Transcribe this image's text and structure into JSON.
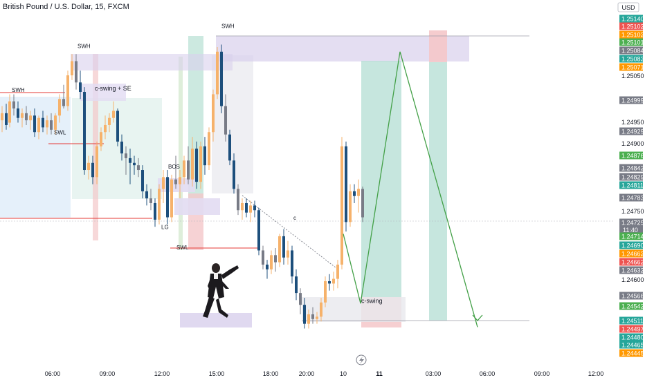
{
  "header": {
    "title": "British Pound / U.S. Dollar, 15, FXCM",
    "currency": "USD"
  },
  "chart_data": {
    "type": "candlestick",
    "title": "British Pound / U.S. Dollar, 15, FXCM",
    "ylim": [
      1.2443,
      1.2516
    ],
    "y_ticks": [
      1.2505,
      1.2495,
      1.249,
      1.2475,
      1.246
    ],
    "x_ticks": [
      "06:00",
      "09:00",
      "12:00",
      "15:00",
      "18:00",
      "20:00",
      "10",
      "11",
      "03:00",
      "06:00",
      "09:00",
      "12:00"
    ],
    "x_tick_bold": [
      false,
      false,
      false,
      false,
      false,
      false,
      false,
      true,
      false,
      false,
      false,
      false
    ],
    "price_labels": [
      {
        "value": "1.25140",
        "color": "#26a69a"
      },
      {
        "value": "1.25102",
        "color": "#ef5350"
      },
      {
        "value": "1.25102",
        "color": "#ff9800"
      },
      {
        "value": "1.25101",
        "color": "#4caf50"
      },
      {
        "value": "1.25084",
        "color": "#787b86"
      },
      {
        "value": "1.25083",
        "color": "#26a69a"
      },
      {
        "value": "1.25071",
        "color": "#ff9800"
      },
      {
        "value": "1.24999",
        "color": "#787b86"
      },
      {
        "value": "1.24929",
        "color": "#787b86"
      },
      {
        "value": "1.24876",
        "color": "#4caf50"
      },
      {
        "value": "1.24842",
        "color": "#787b86"
      },
      {
        "value": "1.24829",
        "color": "#787b86"
      },
      {
        "value": "1.24811",
        "color": "#26a69a"
      },
      {
        "value": "1.24783",
        "color": "#787b86"
      },
      {
        "value": "1.24729",
        "color": "#787b86",
        "sub": "11:40"
      },
      {
        "value": "1.24714",
        "color": "#4caf50"
      },
      {
        "value": "1.24690",
        "color": "#26a69a"
      },
      {
        "value": "1.24662",
        "color": "#ff9800"
      },
      {
        "value": "1.24662",
        "color": "#ef5350"
      },
      {
        "value": "1.24632",
        "color": "#787b86"
      },
      {
        "value": "1.24566",
        "color": "#787b86"
      },
      {
        "value": "1.24542",
        "color": "#4caf50"
      },
      {
        "value": "1.24511",
        "color": "#26a69a"
      },
      {
        "value": "1.24497",
        "color": "#ef5350"
      },
      {
        "value": "1.24480",
        "color": "#26a69a"
      },
      {
        "value": "1.24465",
        "color": "#26a69a"
      },
      {
        "value": "1.24445",
        "color": "#ff9800"
      }
    ],
    "annotations": [
      {
        "text": "SWH",
        "x": 17,
        "price": 1.24995
      },
      {
        "text": "SWL",
        "x": 78,
        "price": 1.24905
      },
      {
        "text": "SWH",
        "x": 112,
        "price": 1.25088
      },
      {
        "text": "c-swing + SE",
        "x": 137,
        "price": 1.24998
      },
      {
        "text": "BOS",
        "x": 243,
        "price": 1.24833
      },
      {
        "text": "LG",
        "x": 233,
        "price": 1.24705
      },
      {
        "text": "SWL",
        "x": 255,
        "price": 1.24662
      },
      {
        "text": "SWH",
        "x": 320,
        "price": 1.2513
      },
      {
        "text": "c-swing",
        "x": 522,
        "price": 1.24549
      },
      {
        "text": "c",
        "x": 424,
        "price": 1.24725
      }
    ],
    "candles": [
      {
        "x": 1,
        "o": 1.24935,
        "h": 1.24965,
        "l": 1.2491,
        "c": 1.2495
      },
      {
        "x": 7,
        "o": 1.2495,
        "h": 1.2497,
        "l": 1.24915,
        "c": 1.24925
      },
      {
        "x": 12,
        "o": 1.2493,
        "h": 1.2499,
        "l": 1.2492,
        "c": 1.24975
      },
      {
        "x": 18,
        "o": 1.24975,
        "h": 1.2499,
        "l": 1.24945,
        "c": 1.2496
      },
      {
        "x": 24,
        "o": 1.2496,
        "h": 1.24975,
        "l": 1.2493,
        "c": 1.2494
      },
      {
        "x": 30,
        "o": 1.2494,
        "h": 1.2496,
        "l": 1.2492,
        "c": 1.2495
      },
      {
        "x": 36,
        "o": 1.2495,
        "h": 1.24965,
        "l": 1.24925,
        "c": 1.24935
      },
      {
        "x": 42,
        "o": 1.24935,
        "h": 1.24955,
        "l": 1.24915,
        "c": 1.24945
      },
      {
        "x": 48,
        "o": 1.24945,
        "h": 1.2496,
        "l": 1.249,
        "c": 1.2491
      },
      {
        "x": 54,
        "o": 1.2491,
        "h": 1.24945,
        "l": 1.24895,
        "c": 1.2494
      },
      {
        "x": 60,
        "o": 1.2494,
        "h": 1.24955,
        "l": 1.2491,
        "c": 1.2492
      },
      {
        "x": 66,
        "o": 1.2492,
        "h": 1.24945,
        "l": 1.24905,
        "c": 1.24935
      },
      {
        "x": 72,
        "o": 1.24935,
        "h": 1.2495,
        "l": 1.24905,
        "c": 1.24915
      },
      {
        "x": 78,
        "o": 1.24915,
        "h": 1.2495,
        "l": 1.24905,
        "c": 1.24945
      },
      {
        "x": 84,
        "o": 1.24945,
        "h": 1.2499,
        "l": 1.2493,
        "c": 1.2498
      },
      {
        "x": 90,
        "o": 1.2498,
        "h": 1.2501,
        "l": 1.2496,
        "c": 1.24965
      },
      {
        "x": 96,
        "o": 1.24965,
        "h": 1.2504,
        "l": 1.24955,
        "c": 1.2503
      },
      {
        "x": 102,
        "o": 1.2503,
        "h": 1.25075,
        "l": 1.2502,
        "c": 1.2506
      },
      {
        "x": 108,
        "o": 1.2506,
        "h": 1.25075,
        "l": 1.25,
        "c": 1.25015
      },
      {
        "x": 114,
        "o": 1.25015,
        "h": 1.2504,
        "l": 1.2498,
        "c": 1.24995
      },
      {
        "x": 120,
        "o": 1.24995,
        "h": 1.25005,
        "l": 1.2482,
        "c": 1.2483
      },
      {
        "x": 126,
        "o": 1.2483,
        "h": 1.2486,
        "l": 1.2481,
        "c": 1.24845
      },
      {
        "x": 132,
        "o": 1.24845,
        "h": 1.2486,
        "l": 1.248,
        "c": 1.24815
      },
      {
        "x": 138,
        "o": 1.24815,
        "h": 1.2489,
        "l": 1.248,
        "c": 1.2488
      },
      {
        "x": 144,
        "o": 1.2488,
        "h": 1.2492,
        "l": 1.2487,
        "c": 1.2491
      },
      {
        "x": 150,
        "o": 1.2491,
        "h": 1.24945,
        "l": 1.24895,
        "c": 1.24925
      },
      {
        "x": 156,
        "o": 1.24925,
        "h": 1.2495,
        "l": 1.2491,
        "c": 1.2494
      },
      {
        "x": 162,
        "o": 1.2494,
        "h": 1.24975,
        "l": 1.2493,
        "c": 1.24955
      },
      {
        "x": 168,
        "o": 1.24955,
        "h": 1.2496,
        "l": 1.2488,
        "c": 1.2489
      },
      {
        "x": 174,
        "o": 1.2489,
        "h": 1.24905,
        "l": 1.2485,
        "c": 1.24865
      },
      {
        "x": 180,
        "o": 1.24865,
        "h": 1.2488,
        "l": 1.2482,
        "c": 1.24855
      },
      {
        "x": 186,
        "o": 1.24855,
        "h": 1.24875,
        "l": 1.248,
        "c": 1.24845
      },
      {
        "x": 192,
        "o": 1.24845,
        "h": 1.2486,
        "l": 1.2482,
        "c": 1.2484
      },
      {
        "x": 198,
        "o": 1.2484,
        "h": 1.24855,
        "l": 1.24815,
        "c": 1.2483
      },
      {
        "x": 204,
        "o": 1.2483,
        "h": 1.2484,
        "l": 1.2477,
        "c": 1.24785
      },
      {
        "x": 210,
        "o": 1.24785,
        "h": 1.248,
        "l": 1.24755,
        "c": 1.2477
      },
      {
        "x": 216,
        "o": 1.2477,
        "h": 1.2479,
        "l": 1.24745,
        "c": 1.2476
      },
      {
        "x": 222,
        "o": 1.2476,
        "h": 1.2477,
        "l": 1.2471,
        "c": 1.24725
      },
      {
        "x": 228,
        "o": 1.24725,
        "h": 1.248,
        "l": 1.24715,
        "c": 1.2479
      },
      {
        "x": 234,
        "o": 1.2479,
        "h": 1.2483,
        "l": 1.2476,
        "c": 1.24815
      },
      {
        "x": 240,
        "o": 1.24815,
        "h": 1.2483,
        "l": 1.24715,
        "c": 1.2473
      },
      {
        "x": 246,
        "o": 1.2473,
        "h": 1.2482,
        "l": 1.2472,
        "c": 1.2481
      },
      {
        "x": 252,
        "o": 1.2481,
        "h": 1.2486,
        "l": 1.2479,
        "c": 1.248
      },
      {
        "x": 258,
        "o": 1.248,
        "h": 1.2483,
        "l": 1.2477,
        "c": 1.24815
      },
      {
        "x": 264,
        "o": 1.24815,
        "h": 1.2486,
        "l": 1.248,
        "c": 1.2485
      },
      {
        "x": 270,
        "o": 1.2485,
        "h": 1.2488,
        "l": 1.248,
        "c": 1.2481
      },
      {
        "x": 276,
        "o": 1.2481,
        "h": 1.249,
        "l": 1.24795,
        "c": 1.24875
      },
      {
        "x": 282,
        "o": 1.24875,
        "h": 1.2489,
        "l": 1.2479,
        "c": 1.24805
      },
      {
        "x": 288,
        "o": 1.24805,
        "h": 1.2489,
        "l": 1.2479,
        "c": 1.2488
      },
      {
        "x": 294,
        "o": 1.2488,
        "h": 1.249,
        "l": 1.2482,
        "c": 1.2484
      },
      {
        "x": 300,
        "o": 1.2484,
        "h": 1.2492,
        "l": 1.2483,
        "c": 1.2491
      },
      {
        "x": 306,
        "o": 1.2491,
        "h": 1.25,
        "l": 1.2489,
        "c": 1.2499
      },
      {
        "x": 312,
        "o": 1.2499,
        "h": 1.2509,
        "l": 1.2498,
        "c": 1.2508
      },
      {
        "x": 318,
        "o": 1.2508,
        "h": 1.25095,
        "l": 1.2495,
        "c": 1.24965
      },
      {
        "x": 324,
        "o": 1.24965,
        "h": 1.2499,
        "l": 1.2489,
        "c": 1.24905
      },
      {
        "x": 330,
        "o": 1.24905,
        "h": 1.24915,
        "l": 1.2484,
        "c": 1.2485
      },
      {
        "x": 336,
        "o": 1.2485,
        "h": 1.24865,
        "l": 1.2478,
        "c": 1.2479
      },
      {
        "x": 342,
        "o": 1.2479,
        "h": 1.248,
        "l": 1.24735,
        "c": 1.24745
      },
      {
        "x": 348,
        "o": 1.24745,
        "h": 1.2477,
        "l": 1.24725,
        "c": 1.2476
      },
      {
        "x": 354,
        "o": 1.2476,
        "h": 1.2477,
        "l": 1.2473,
        "c": 1.2474
      },
      {
        "x": 360,
        "o": 1.2474,
        "h": 1.24765,
        "l": 1.2472,
        "c": 1.24755
      },
      {
        "x": 366,
        "o": 1.24755,
        "h": 1.24765,
        "l": 1.2473,
        "c": 1.24745
      },
      {
        "x": 372,
        "o": 1.24745,
        "h": 1.2475,
        "l": 1.2465,
        "c": 1.2466
      },
      {
        "x": 378,
        "o": 1.2466,
        "h": 1.2467,
        "l": 1.2462,
        "c": 1.2463
      },
      {
        "x": 384,
        "o": 1.2463,
        "h": 1.2464,
        "l": 1.246,
        "c": 1.2462
      },
      {
        "x": 390,
        "o": 1.2462,
        "h": 1.2466,
        "l": 1.2461,
        "c": 1.2465
      },
      {
        "x": 396,
        "o": 1.2465,
        "h": 1.24665,
        "l": 1.24615,
        "c": 1.24635
      },
      {
        "x": 402,
        "o": 1.24635,
        "h": 1.24695,
        "l": 1.24625,
        "c": 1.2469
      },
      {
        "x": 408,
        "o": 1.2469,
        "h": 1.24705,
        "l": 1.2463,
        "c": 1.24645
      },
      {
        "x": 414,
        "o": 1.24645,
        "h": 1.2468,
        "l": 1.2463,
        "c": 1.2466
      },
      {
        "x": 420,
        "o": 1.2466,
        "h": 1.2467,
        "l": 1.2459,
        "c": 1.24605
      },
      {
        "x": 426,
        "o": 1.24605,
        "h": 1.2462,
        "l": 1.24555,
        "c": 1.2457
      },
      {
        "x": 432,
        "o": 1.2457,
        "h": 1.2458,
        "l": 1.24525,
        "c": 1.24545
      },
      {
        "x": 438,
        "o": 1.24545,
        "h": 1.2456,
        "l": 1.24495,
        "c": 1.24505
      },
      {
        "x": 444,
        "o": 1.24505,
        "h": 1.24535,
        "l": 1.24495,
        "c": 1.24525
      },
      {
        "x": 450,
        "o": 1.24525,
        "h": 1.2454,
        "l": 1.24505,
        "c": 1.24515
      },
      {
        "x": 456,
        "o": 1.24515,
        "h": 1.2453,
        "l": 1.24505,
        "c": 1.2452
      },
      {
        "x": 462,
        "o": 1.2452,
        "h": 1.2456,
        "l": 1.2451,
        "c": 1.2455
      },
      {
        "x": 468,
        "o": 1.2455,
        "h": 1.24605,
        "l": 1.2454,
        "c": 1.24595
      },
      {
        "x": 474,
        "o": 1.24595,
        "h": 1.2461,
        "l": 1.24575,
        "c": 1.2459
      },
      {
        "x": 480,
        "o": 1.2459,
        "h": 1.24615,
        "l": 1.24575,
        "c": 1.246
      },
      {
        "x": 486,
        "o": 1.246,
        "h": 1.2464,
        "l": 1.2458,
        "c": 1.2463
      },
      {
        "x": 492,
        "o": 1.2463,
        "h": 1.249,
        "l": 1.2462,
        "c": 1.2488
      },
      {
        "x": 498,
        "o": 1.2488,
        "h": 1.2489,
        "l": 1.247,
        "c": 1.2472
      },
      {
        "x": 504,
        "o": 1.2472,
        "h": 1.248,
        "l": 1.2471,
        "c": 1.24785
      },
      {
        "x": 510,
        "o": 1.24785,
        "h": 1.248,
        "l": 1.2476,
        "c": 1.24775
      },
      {
        "x": 516,
        "o": 1.24775,
        "h": 1.2481,
        "l": 1.2474,
        "c": 1.2479
      },
      {
        "x": 522,
        "o": 1.2479,
        "h": 1.24795,
        "l": 1.2472,
        "c": 1.2473
      }
    ],
    "projection": [
      {
        "x": 496,
        "price": 1.24695
      },
      {
        "x": 521,
        "price": 1.24548
      },
      {
        "x": 578,
        "price": 1.2508
      },
      {
        "x": 690,
        "price": 1.24498
      }
    ],
    "colors": {
      "up": "#f6b26b",
      "down_navy": "#1d4f7c",
      "down_grey": "#787b86",
      "bull_zone": "#26a69a",
      "bear_zone": "#ef5350",
      "zone_purple": "#9c7fd0",
      "swing_line": "#e53935",
      "projection_line": "#43a047"
    }
  }
}
